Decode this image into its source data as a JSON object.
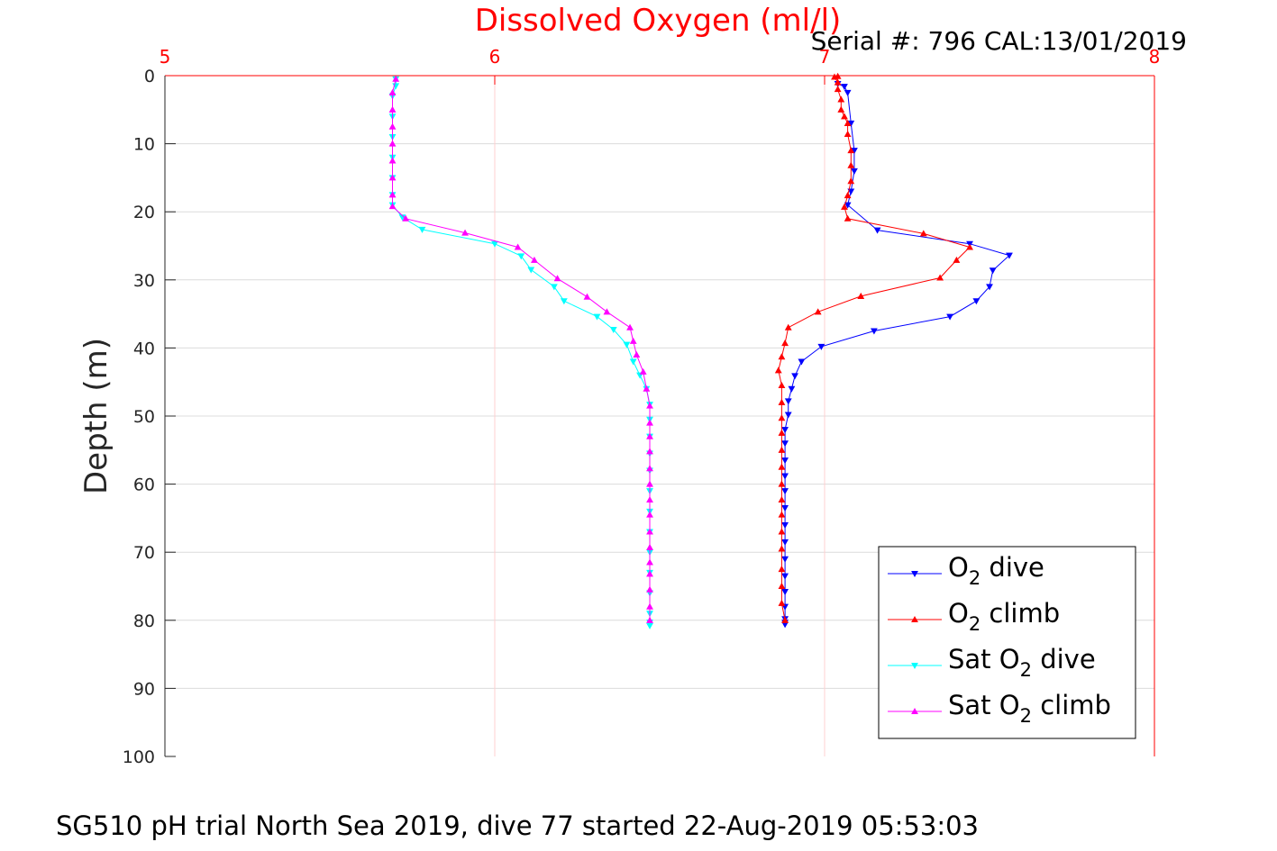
{
  "chart_data": {
    "type": "line",
    "title": "Dissolved Oxygen (ml/l)",
    "subtitle": "Serial #: 796  CAL:13/01/2019",
    "ylabel": "Depth (m)",
    "xlabel": "",
    "caption": "SG510 pH trial North Sea 2019, dive 77 started 22-Aug-2019 05:53:03",
    "xlim": [
      5,
      8
    ],
    "ylim": [
      0,
      100
    ],
    "y_reversed": true,
    "x_axis_position": "top",
    "x_ticks": [
      "5",
      "6",
      "7",
      "8"
    ],
    "y_ticks": [
      "0",
      "10",
      "20",
      "30",
      "40",
      "50",
      "60",
      "70",
      "80",
      "90",
      "100"
    ],
    "grid": true,
    "legend_position": "bottom-right",
    "colors": {
      "title": "#ff0000",
      "x_axis": "#ff0000",
      "grid": "#dcdcdc",
      "x_grid": "#ffd0d0"
    },
    "series": [
      {
        "name": "O2 dive",
        "label_main": "O",
        "label_sub": "2",
        "label_rest": " dive",
        "label_prefix": "",
        "color": "#0000ff",
        "marker": "triangle-down",
        "points": [
          [
            7.04,
            1.2
          ],
          [
            7.06,
            1.6
          ],
          [
            7.07,
            2.5
          ],
          [
            7.08,
            7.0
          ],
          [
            7.09,
            11.0
          ],
          [
            7.09,
            14.0
          ],
          [
            7.08,
            17.0
          ],
          [
            7.07,
            19.0
          ],
          [
            7.16,
            22.7
          ],
          [
            7.44,
            24.7
          ],
          [
            7.56,
            26.4
          ],
          [
            7.51,
            28.6
          ],
          [
            7.5,
            31.0
          ],
          [
            7.46,
            33.1
          ],
          [
            7.38,
            35.4
          ],
          [
            7.15,
            37.5
          ],
          [
            6.99,
            39.8
          ],
          [
            6.93,
            42.0
          ],
          [
            6.91,
            44.1
          ],
          [
            6.9,
            46.0
          ],
          [
            6.89,
            47.8
          ],
          [
            6.89,
            49.8
          ],
          [
            6.88,
            52.0
          ],
          [
            6.88,
            54.0
          ],
          [
            6.88,
            56.5
          ],
          [
            6.88,
            58.8
          ],
          [
            6.88,
            61.0
          ],
          [
            6.88,
            63.5
          ],
          [
            6.88,
            66.0
          ],
          [
            6.88,
            68.5
          ],
          [
            6.88,
            71.0
          ],
          [
            6.88,
            73.5
          ],
          [
            6.88,
            75.8
          ],
          [
            6.88,
            78.0
          ],
          [
            6.88,
            79.8
          ],
          [
            6.88,
            80.3
          ],
          [
            6.88,
            80.6
          ]
        ]
      },
      {
        "name": "O2 climb",
        "label_main": "O",
        "label_sub": "2",
        "label_rest": " climb",
        "label_prefix": "",
        "color": "#ff0000",
        "marker": "triangle-up",
        "points": [
          [
            6.88,
            80.0
          ],
          [
            6.87,
            77.5
          ],
          [
            6.87,
            75.0
          ],
          [
            6.87,
            72.5
          ],
          [
            6.87,
            69.5
          ],
          [
            6.87,
            67.0
          ],
          [
            6.87,
            64.5
          ],
          [
            6.87,
            62.3
          ],
          [
            6.87,
            60.0
          ],
          [
            6.87,
            57.5
          ],
          [
            6.87,
            55.0
          ],
          [
            6.87,
            52.5
          ],
          [
            6.87,
            50.3
          ],
          [
            6.87,
            48.0
          ],
          [
            6.87,
            45.5
          ],
          [
            6.86,
            43.3
          ],
          [
            6.87,
            41.3
          ],
          [
            6.88,
            39.3
          ],
          [
            6.89,
            37.0
          ],
          [
            6.98,
            34.7
          ],
          [
            7.11,
            32.4
          ],
          [
            7.35,
            29.7
          ],
          [
            7.4,
            27.1
          ],
          [
            7.44,
            25.2
          ],
          [
            7.3,
            23.2
          ],
          [
            7.07,
            21.0
          ],
          [
            7.06,
            19.3
          ],
          [
            7.07,
            17.6
          ],
          [
            7.08,
            15.5
          ],
          [
            7.08,
            13.2
          ],
          [
            7.08,
            11.0
          ],
          [
            7.07,
            8.6
          ],
          [
            7.07,
            7.0
          ],
          [
            7.06,
            6.0
          ],
          [
            7.05,
            5.0
          ],
          [
            7.05,
            3.5
          ],
          [
            7.04,
            2.0
          ],
          [
            7.04,
            1.0
          ],
          [
            7.03,
            0.2
          ],
          [
            7.04,
            0.1
          ]
        ]
      },
      {
        "name": "Sat O2 dive",
        "label_main": "O",
        "label_sub": "2",
        "label_rest": " dive",
        "label_prefix": "Sat ",
        "color": "#00ffff",
        "marker": "triangle-down",
        "points": [
          [
            5.7,
            0.5
          ],
          [
            5.7,
            1.5
          ],
          [
            5.69,
            3.0
          ],
          [
            5.69,
            6.0
          ],
          [
            5.69,
            9.0
          ],
          [
            5.69,
            12.0
          ],
          [
            5.69,
            15.0
          ],
          [
            5.69,
            17.5
          ],
          [
            5.69,
            19.0
          ],
          [
            5.72,
            20.8
          ],
          [
            5.78,
            22.6
          ],
          [
            6.0,
            24.7
          ],
          [
            6.08,
            26.5
          ],
          [
            6.11,
            28.5
          ],
          [
            6.18,
            31.0
          ],
          [
            6.21,
            33.1
          ],
          [
            6.31,
            35.4
          ],
          [
            6.36,
            37.3
          ],
          [
            6.4,
            39.5
          ],
          [
            6.42,
            42.0
          ],
          [
            6.44,
            44.0
          ],
          [
            6.46,
            46.0
          ],
          [
            6.47,
            48.3
          ],
          [
            6.47,
            50.5
          ],
          [
            6.47,
            53.0
          ],
          [
            6.47,
            55.5
          ],
          [
            6.47,
            58.0
          ],
          [
            6.47,
            61.0
          ],
          [
            6.47,
            64.0
          ],
          [
            6.47,
            67.0
          ],
          [
            6.47,
            70.0
          ],
          [
            6.47,
            73.0
          ],
          [
            6.47,
            76.0
          ],
          [
            6.47,
            79.0
          ],
          [
            6.47,
            80.3
          ],
          [
            6.47,
            80.8
          ]
        ]
      },
      {
        "name": "Sat O2 climb",
        "label_main": "O",
        "label_sub": "2",
        "label_rest": " climb",
        "label_prefix": "Sat ",
        "color": "#ff00ff",
        "marker": "triangle-up",
        "points": [
          [
            6.47,
            80.0
          ],
          [
            6.47,
            78.0
          ],
          [
            6.47,
            75.5
          ],
          [
            6.47,
            73.2
          ],
          [
            6.47,
            71.5
          ],
          [
            6.47,
            69.3
          ],
          [
            6.47,
            67.0
          ],
          [
            6.47,
            64.5
          ],
          [
            6.47,
            62.3
          ],
          [
            6.47,
            60.0
          ],
          [
            6.47,
            57.7
          ],
          [
            6.47,
            55.2
          ],
          [
            6.47,
            53.0
          ],
          [
            6.47,
            51.0
          ],
          [
            6.47,
            48.5
          ],
          [
            6.46,
            46.0
          ],
          [
            6.45,
            43.5
          ],
          [
            6.43,
            41.0
          ],
          [
            6.42,
            39.0
          ],
          [
            6.41,
            37.0
          ],
          [
            6.34,
            34.7
          ],
          [
            6.28,
            32.5
          ],
          [
            6.19,
            29.8
          ],
          [
            6.12,
            27.1
          ],
          [
            6.07,
            25.2
          ],
          [
            5.91,
            23.1
          ],
          [
            5.73,
            21.0
          ],
          [
            5.69,
            19.2
          ],
          [
            5.69,
            17.5
          ],
          [
            5.69,
            15.0
          ],
          [
            5.69,
            12.5
          ],
          [
            5.69,
            10.0
          ],
          [
            5.69,
            7.5
          ],
          [
            5.69,
            5.0
          ],
          [
            5.69,
            2.5
          ],
          [
            5.7,
            0.5
          ]
        ]
      }
    ]
  }
}
